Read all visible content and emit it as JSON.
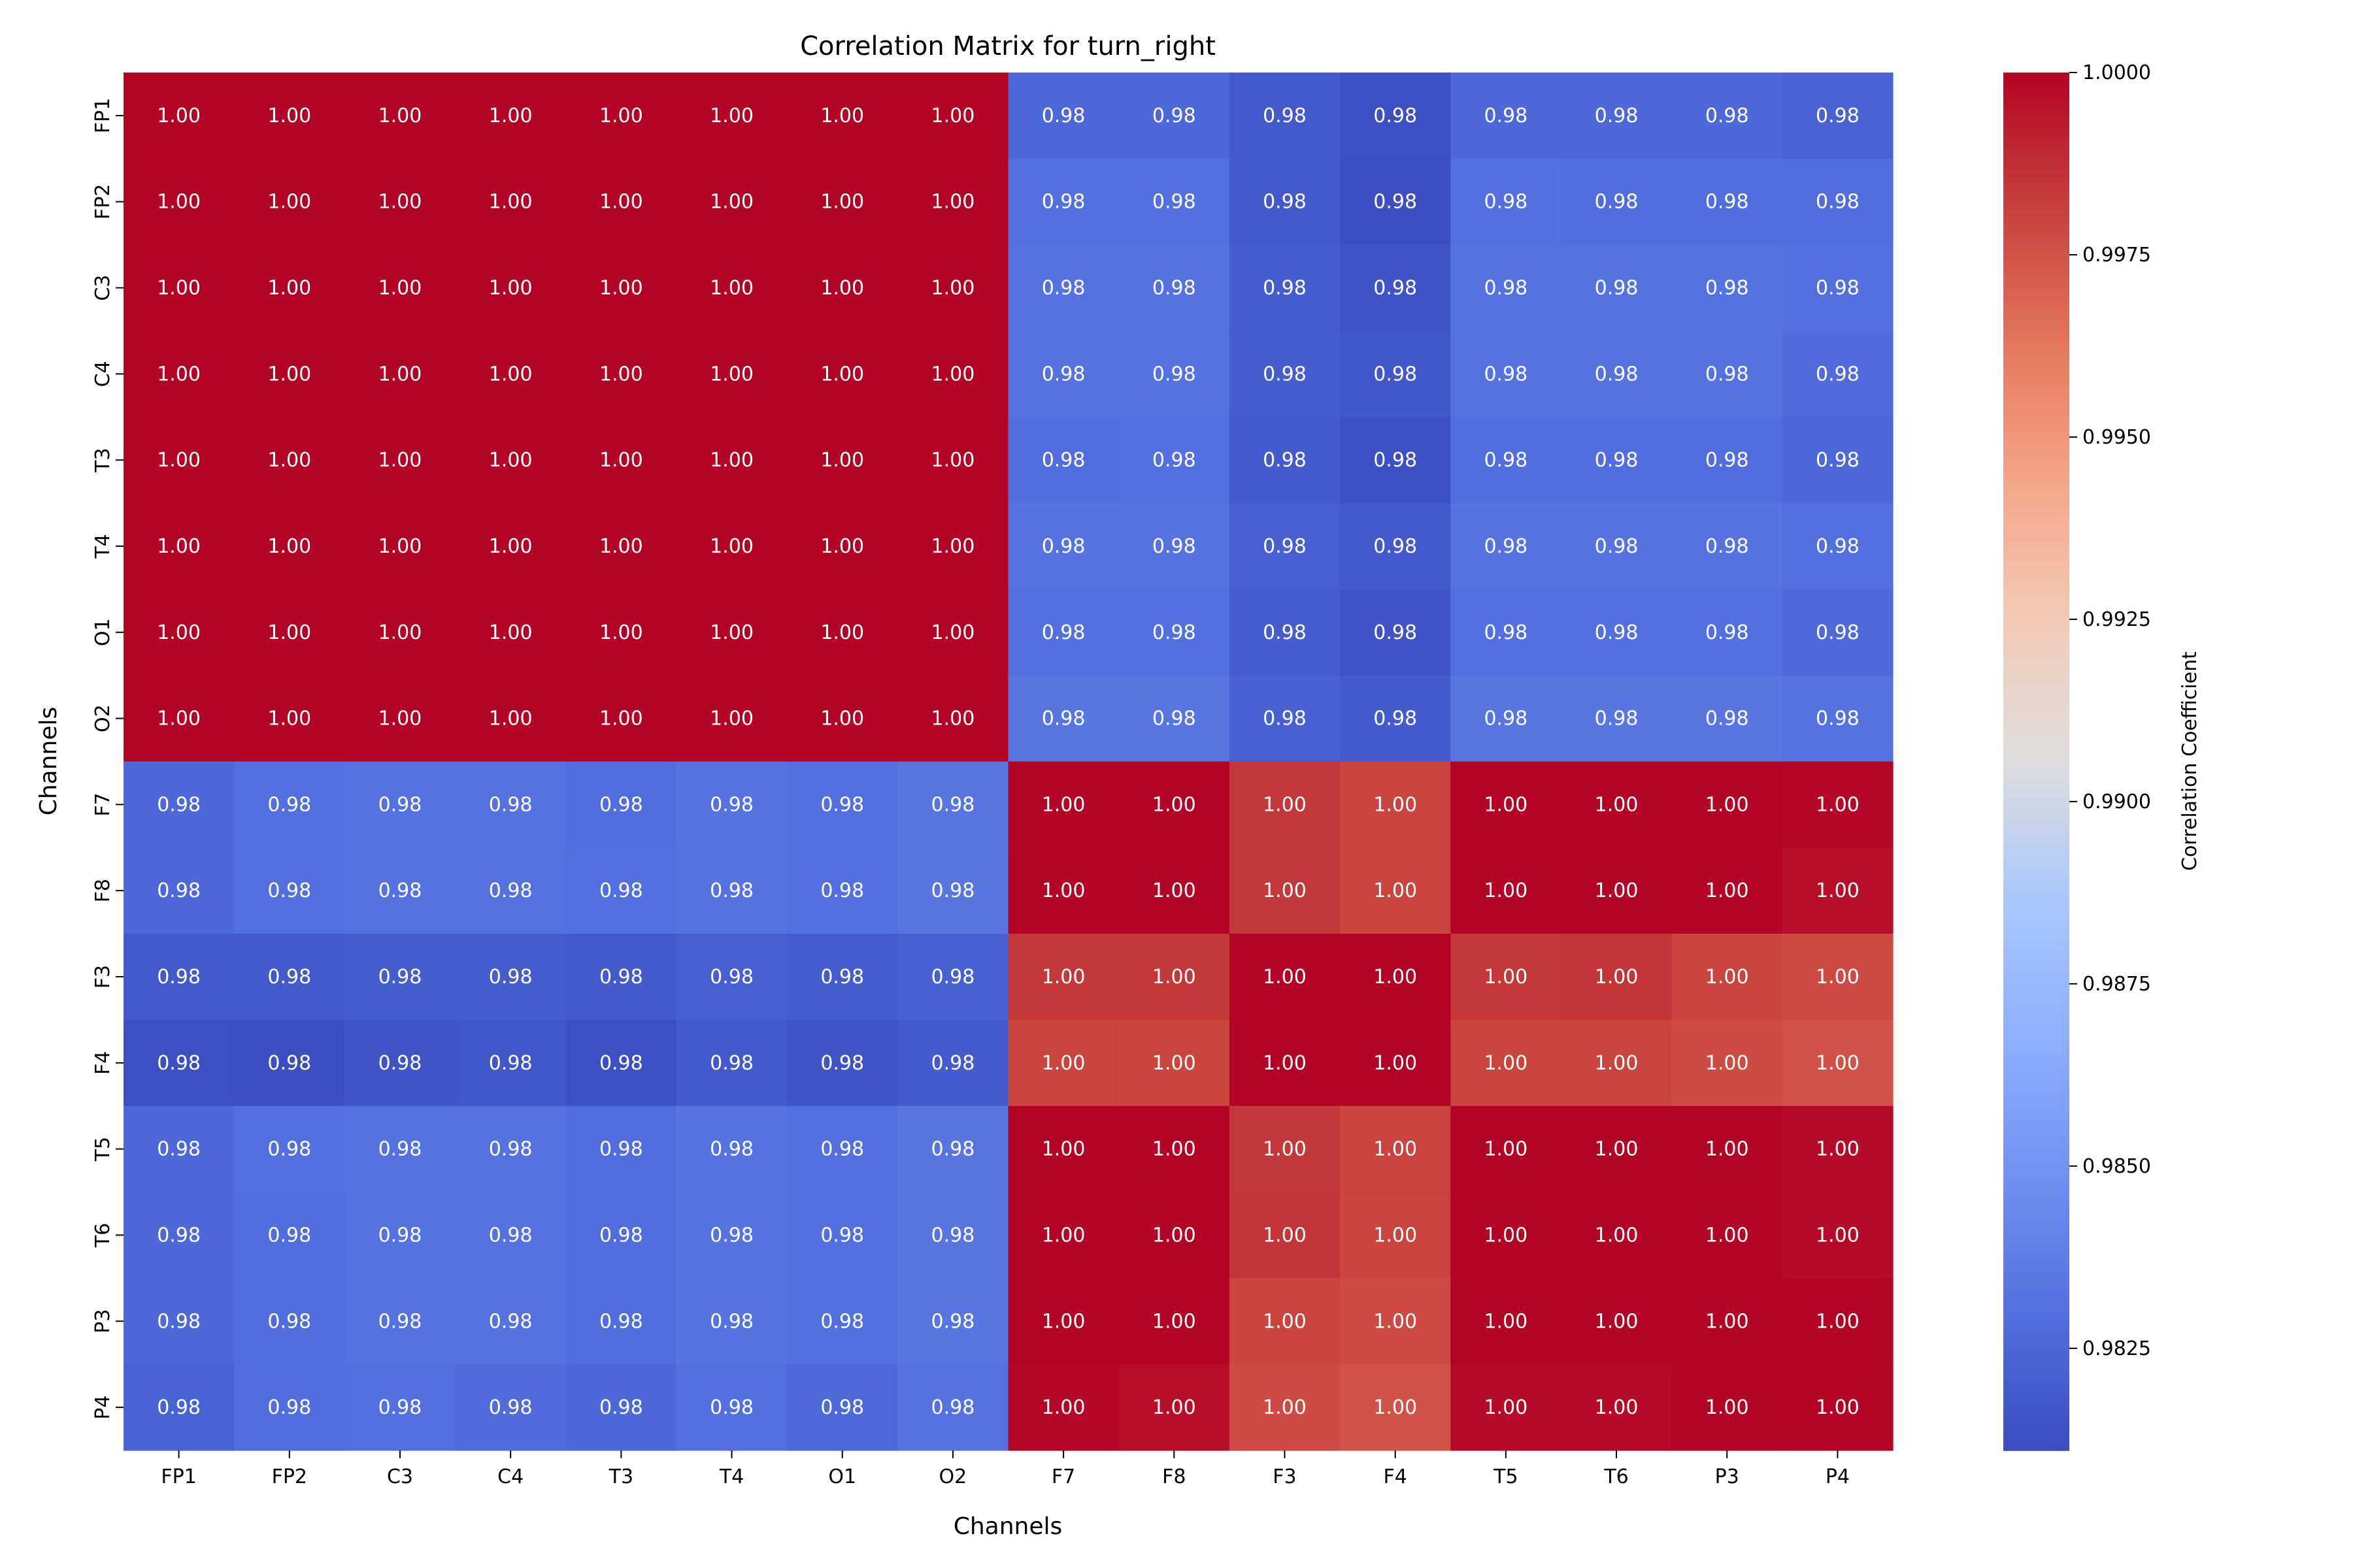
{
  "chart_data": {
    "type": "heatmap",
    "title": "Correlation Matrix for turn_right",
    "xlabel": "Channels",
    "ylabel": "Channels",
    "x_labels": [
      "FP1",
      "FP2",
      "C3",
      "C4",
      "T3",
      "T4",
      "O1",
      "O2",
      "F7",
      "F8",
      "F3",
      "F4",
      "T5",
      "T6",
      "P3",
      "P4"
    ],
    "y_labels": [
      "FP1",
      "FP2",
      "C3",
      "C4",
      "T3",
      "T4",
      "O1",
      "O2",
      "F7",
      "F8",
      "F3",
      "F4",
      "T5",
      "T6",
      "P3",
      "P4"
    ],
    "colormap": "coolwarm",
    "value_format": "0.00",
    "annotation_color": "#ffffff",
    "colorbar": {
      "label": "Correlation Coefficient",
      "range": [
        0.9811,
        1.0
      ],
      "ticks": [
        "0.9825",
        "0.9850",
        "0.9875",
        "0.9900",
        "0.9925",
        "0.9950",
        "0.9975",
        "1.0000"
      ]
    },
    "values": [
      [
        1,
        1,
        1,
        1,
        1,
        1,
        1,
        1,
        0.9826,
        0.9826,
        0.9818,
        0.9813,
        0.9826,
        0.9826,
        0.9826,
        0.9823
      ],
      [
        1,
        1,
        1,
        1,
        1,
        1,
        1,
        1,
        0.983,
        0.983,
        0.9818,
        0.9812,
        0.983,
        0.9829,
        0.9829,
        0.9829
      ],
      [
        1,
        1,
        1,
        1,
        1,
        1,
        1,
        1,
        0.9831,
        0.9831,
        0.982,
        0.9815,
        0.9831,
        0.9831,
        0.9831,
        0.983
      ],
      [
        1,
        1,
        1,
        1,
        1,
        1,
        1,
        1,
        0.9831,
        0.9831,
        0.982,
        0.9817,
        0.9831,
        0.9831,
        0.9831,
        0.9828
      ],
      [
        1,
        1,
        1,
        1,
        1,
        1,
        1,
        1,
        0.9829,
        0.983,
        0.9819,
        0.9813,
        0.9829,
        0.9829,
        0.9829,
        0.9826
      ],
      [
        1,
        1,
        1,
        1,
        1,
        1,
        1,
        1,
        0.9832,
        0.9832,
        0.9821,
        0.9818,
        0.9832,
        0.9832,
        0.9832,
        0.983
      ],
      [
        1,
        1,
        1,
        1,
        1,
        1,
        1,
        1,
        0.983,
        0.983,
        0.982,
        0.9815,
        0.983,
        0.983,
        0.983,
        0.9827
      ],
      [
        1,
        1,
        1,
        1,
        1,
        1,
        1,
        1,
        0.9833,
        0.9833,
        0.9822,
        0.9819,
        0.9833,
        0.9833,
        0.9833,
        0.9831
      ],
      [
        0.9826,
        0.983,
        0.9831,
        0.9831,
        0.9829,
        0.9832,
        0.983,
        0.9833,
        1,
        1,
        0.9984,
        0.998,
        1,
        1,
        1,
        0.9999
      ],
      [
        0.9826,
        0.983,
        0.9831,
        0.9831,
        0.983,
        0.9832,
        0.983,
        0.9833,
        1,
        1,
        0.9984,
        0.998,
        1,
        1,
        1,
        0.9997
      ],
      [
        0.9818,
        0.9818,
        0.982,
        0.982,
        0.9819,
        0.9821,
        0.982,
        0.9822,
        0.9984,
        0.9984,
        1,
        1,
        0.9984,
        0.9985,
        0.998,
        0.9978
      ],
      [
        0.9813,
        0.9812,
        0.9815,
        0.9817,
        0.9813,
        0.9818,
        0.9815,
        0.9819,
        0.998,
        0.998,
        1,
        1,
        0.998,
        0.998,
        0.9978,
        0.9975
      ],
      [
        0.9826,
        0.983,
        0.9831,
        0.9831,
        0.9829,
        0.9832,
        0.983,
        0.9833,
        1,
        1,
        0.9984,
        0.998,
        1,
        1,
        1,
        0.9998
      ],
      [
        0.9826,
        0.9829,
        0.9831,
        0.9831,
        0.9829,
        0.9832,
        0.983,
        0.9833,
        1,
        1,
        0.9985,
        0.998,
        1,
        1,
        1,
        0.9998
      ],
      [
        0.9826,
        0.9829,
        0.9831,
        0.9831,
        0.9829,
        0.9832,
        0.983,
        0.9833,
        1,
        1,
        0.998,
        0.9978,
        1,
        1,
        1,
        1
      ],
      [
        0.9823,
        0.9829,
        0.983,
        0.9828,
        0.9826,
        0.983,
        0.9827,
        0.9831,
        0.9999,
        0.9997,
        0.9978,
        0.9975,
        0.9998,
        0.9998,
        1,
        1
      ]
    ]
  }
}
